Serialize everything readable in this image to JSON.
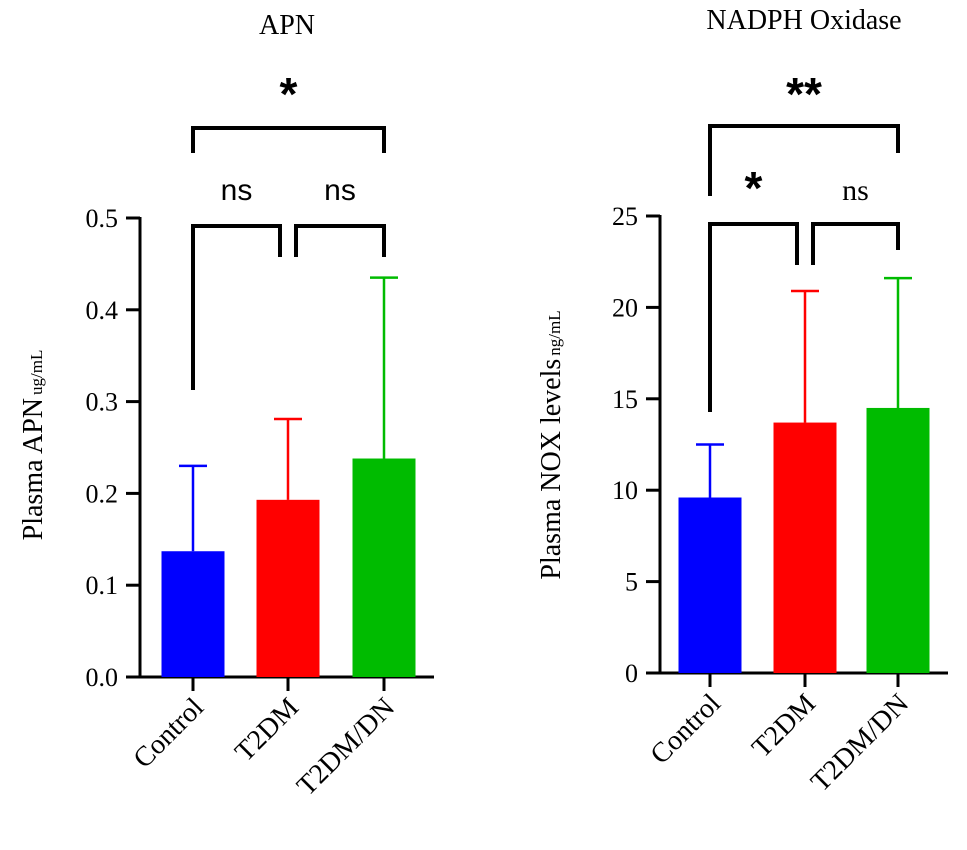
{
  "chart_data": [
    {
      "type": "bar",
      "title": "APN",
      "ylabel": "Plasma APN",
      "ylabel_unit": "ug/mL",
      "categories": [
        "Control",
        "T2DM",
        "T2DM/DN"
      ],
      "values": [
        0.137,
        0.193,
        0.238
      ],
      "error_upper": [
        0.23,
        0.281,
        0.435
      ],
      "colors": [
        "#0000ff",
        "#ff0000",
        "#00bb00"
      ],
      "ylim": [
        0,
        0.5
      ],
      "yticks": [
        "0.0",
        "0.1",
        "0.2",
        "0.3",
        "0.4",
        "0.5"
      ],
      "grid": false,
      "significance": [
        {
          "from": "Control",
          "to": "T2DM",
          "label": "ns"
        },
        {
          "from": "T2DM",
          "to": "T2DM/DN",
          "label": "ns"
        },
        {
          "from": "Control",
          "to": "T2DM/DN",
          "label": "*"
        }
      ]
    },
    {
      "type": "bar",
      "title": "NADPH Oxidase",
      "ylabel": "Plasma NOX levels",
      "ylabel_unit": "ng/mL",
      "categories": [
        "Control",
        "T2DM",
        "T2DM/DN"
      ],
      "values": [
        9.6,
        13.7,
        14.5
      ],
      "error_upper": [
        12.5,
        20.9,
        21.6
      ],
      "colors": [
        "#0000ff",
        "#ff0000",
        "#00bb00"
      ],
      "ylim": [
        0,
        25
      ],
      "yticks": [
        "0",
        "5",
        "10",
        "15",
        "20",
        "25"
      ],
      "grid": false,
      "significance": [
        {
          "from": "Control",
          "to": "T2DM",
          "label": "*"
        },
        {
          "from": "T2DM",
          "to": "T2DM/DN",
          "label": "ns"
        },
        {
          "from": "Control",
          "to": "T2DM/DN",
          "label": "**"
        }
      ]
    }
  ]
}
